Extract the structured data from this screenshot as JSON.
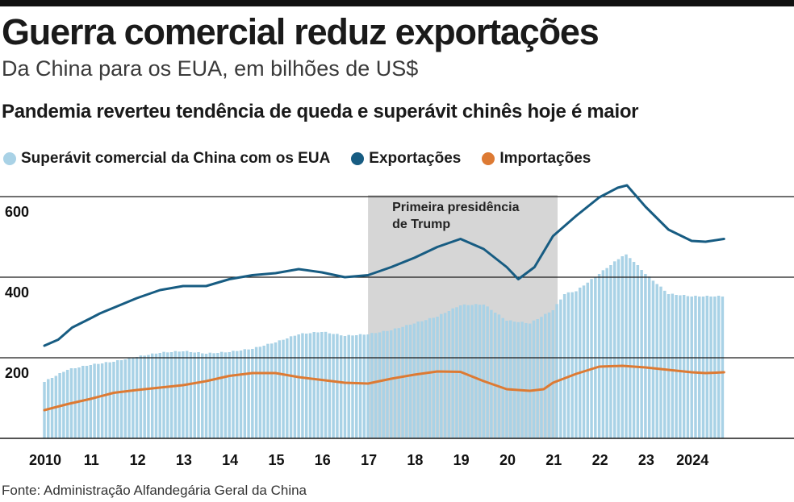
{
  "header": {
    "title": "Guerra comercial reduz exportações",
    "subtitle": "Da China para os EUA, em bilhões de US$",
    "headline": "Pandemia reverteu tendência de queda e superávit chinês hoje é maior"
  },
  "legend": {
    "surplus": "Superávit comercial da China com os EUA",
    "exports": "Exportações",
    "imports": "Importações"
  },
  "source": "Fonte: Administração Alfandegária Geral da China",
  "colors": {
    "surplus": "#a9d2e6",
    "exports": "#175c82",
    "imports": "#dd7a33",
    "shade": "#d6d6d6",
    "gridline": "#1a1a1a"
  },
  "chart_data": {
    "type": "bar+line",
    "title": "Guerra comercial reduz exportações",
    "ylabel": "bilhões de US$",
    "ylim": [
      0,
      660
    ],
    "yticks": [
      200,
      400,
      600
    ],
    "x_range": [
      2010.0,
      2024.8
    ],
    "xticks": [
      {
        "value": 2010,
        "label": "2010"
      },
      {
        "value": 2011,
        "label": "11"
      },
      {
        "value": 2012,
        "label": "12"
      },
      {
        "value": 2013,
        "label": "13"
      },
      {
        "value": 2014,
        "label": "14"
      },
      {
        "value": 2015,
        "label": "15"
      },
      {
        "value": 2016,
        "label": "16"
      },
      {
        "value": 2017,
        "label": "17"
      },
      {
        "value": 2018,
        "label": "18"
      },
      {
        "value": 2019,
        "label": "19"
      },
      {
        "value": 2020,
        "label": "20"
      },
      {
        "value": 2021,
        "label": "21"
      },
      {
        "value": 2022,
        "label": "22"
      },
      {
        "value": 2023,
        "label": "23"
      },
      {
        "value": 2024,
        "label": "2024"
      }
    ],
    "annotation": {
      "text_line1": "Primeira presidência",
      "text_line2": "de Trump",
      "from": 2017.0,
      "to": 2021.1
    },
    "series": [
      {
        "name": "Superávit comercial da China com os EUA",
        "kind": "bar",
        "points": [
          [
            2010.0,
            140
          ],
          [
            2010.5,
            170
          ],
          [
            2011.0,
            182
          ],
          [
            2011.5,
            190
          ],
          [
            2012.0,
            202
          ],
          [
            2012.5,
            212
          ],
          [
            2013.0,
            216
          ],
          [
            2013.5,
            210
          ],
          [
            2014.0,
            214
          ],
          [
            2014.5,
            222
          ],
          [
            2015.0,
            238
          ],
          [
            2015.5,
            258
          ],
          [
            2016.0,
            264
          ],
          [
            2016.5,
            254
          ],
          [
            2017.0,
            258
          ],
          [
            2017.5,
            268
          ],
          [
            2018.0,
            285
          ],
          [
            2018.5,
            302
          ],
          [
            2019.0,
            330
          ],
          [
            2019.5,
            332
          ],
          [
            2020.0,
            292
          ],
          [
            2020.5,
            285
          ],
          [
            2021.0,
            318
          ],
          [
            2021.25,
            358
          ],
          [
            2021.5,
            365
          ],
          [
            2022.0,
            408
          ],
          [
            2022.5,
            452
          ],
          [
            2022.6,
            455
          ],
          [
            2022.75,
            438
          ],
          [
            2023.0,
            408
          ],
          [
            2023.3,
            378
          ],
          [
            2023.5,
            358
          ],
          [
            2024.0,
            352
          ],
          [
            2024.5,
            352
          ],
          [
            2024.7,
            352
          ]
        ]
      },
      {
        "name": "Exportações",
        "kind": "line",
        "points": [
          [
            2010.0,
            230
          ],
          [
            2010.3,
            245
          ],
          [
            2010.6,
            275
          ],
          [
            2011.0,
            298
          ],
          [
            2011.2,
            310
          ],
          [
            2012.0,
            348
          ],
          [
            2012.5,
            368
          ],
          [
            2013.0,
            378
          ],
          [
            2013.5,
            378
          ],
          [
            2014.0,
            395
          ],
          [
            2014.5,
            405
          ],
          [
            2015.0,
            410
          ],
          [
            2015.5,
            420
          ],
          [
            2016.0,
            412
          ],
          [
            2016.5,
            400
          ],
          [
            2017.0,
            405
          ],
          [
            2017.5,
            425
          ],
          [
            2018.0,
            448
          ],
          [
            2018.5,
            475
          ],
          [
            2019.0,
            495
          ],
          [
            2019.5,
            470
          ],
          [
            2020.0,
            425
          ],
          [
            2020.25,
            395
          ],
          [
            2020.6,
            425
          ],
          [
            2021.0,
            502
          ],
          [
            2021.5,
            552
          ],
          [
            2022.0,
            598
          ],
          [
            2022.4,
            622
          ],
          [
            2022.6,
            628
          ],
          [
            2022.75,
            608
          ],
          [
            2023.0,
            575
          ],
          [
            2023.5,
            518
          ],
          [
            2024.0,
            490
          ],
          [
            2024.3,
            488
          ],
          [
            2024.7,
            495
          ]
        ]
      },
      {
        "name": "Importações",
        "kind": "line",
        "points": [
          [
            2010.0,
            70
          ],
          [
            2010.5,
            85
          ],
          [
            2011.0,
            98
          ],
          [
            2011.5,
            113
          ],
          [
            2012.0,
            120
          ],
          [
            2012.5,
            126
          ],
          [
            2013.0,
            132
          ],
          [
            2013.5,
            142
          ],
          [
            2014.0,
            155
          ],
          [
            2014.5,
            162
          ],
          [
            2015.0,
            162
          ],
          [
            2015.5,
            152
          ],
          [
            2016.0,
            145
          ],
          [
            2016.5,
            138
          ],
          [
            2017.0,
            136
          ],
          [
            2017.5,
            148
          ],
          [
            2018.0,
            158
          ],
          [
            2018.5,
            166
          ],
          [
            2019.0,
            165
          ],
          [
            2019.5,
            142
          ],
          [
            2020.0,
            122
          ],
          [
            2020.5,
            118
          ],
          [
            2020.8,
            122
          ],
          [
            2021.0,
            138
          ],
          [
            2021.5,
            160
          ],
          [
            2022.0,
            178
          ],
          [
            2022.5,
            180
          ],
          [
            2023.0,
            176
          ],
          [
            2023.5,
            170
          ],
          [
            2024.0,
            164
          ],
          [
            2024.3,
            162
          ],
          [
            2024.7,
            164
          ]
        ]
      }
    ]
  }
}
